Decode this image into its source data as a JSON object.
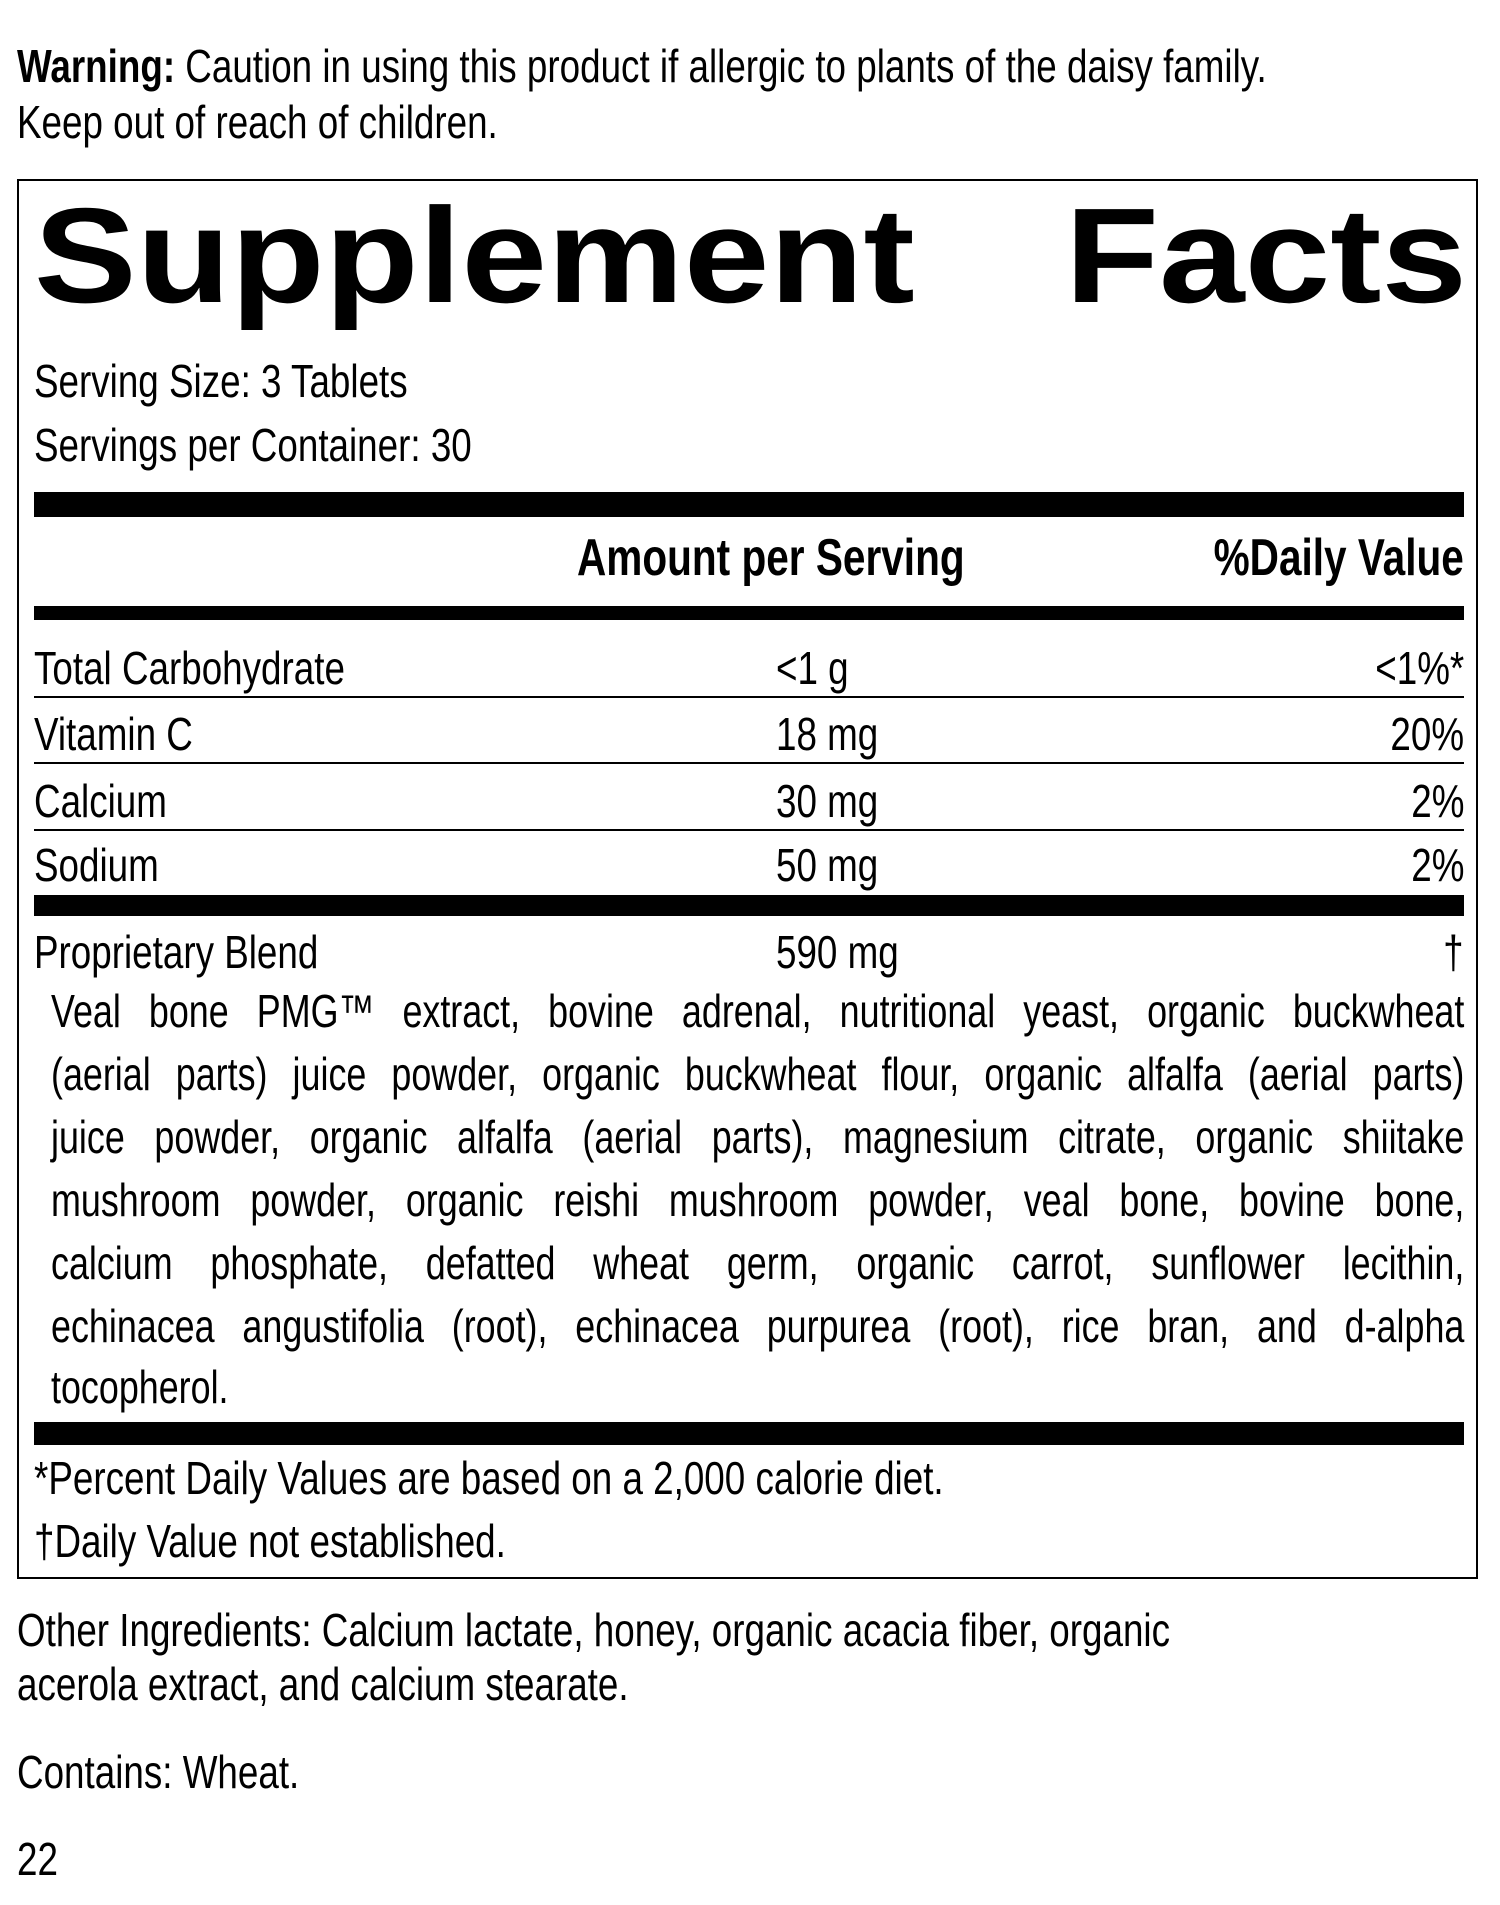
{
  "warning": {
    "label": "Warning:",
    "text": " Caution in using this product if allergic to plants of the daisy family.",
    "line2": "Keep out of reach of children."
  },
  "facts": {
    "title_word1": "Supplement",
    "title_word2": "Facts",
    "serving_size": "Serving Size: 3 Tablets",
    "servings_per_container": "Servings per Container: 30",
    "header_amount": "Amount per Serving",
    "header_dv": "%Daily Value",
    "rows": [
      {
        "name": "Total Carbohydrate",
        "amount": "<1 g",
        "dv": "<1%*"
      },
      {
        "name": "Vitamin C",
        "amount": "18 mg",
        "dv": "20%"
      },
      {
        "name": "Calcium",
        "amount": "30 mg",
        "dv": "2%"
      },
      {
        "name": "Sodium",
        "amount": "50 mg",
        "dv": "2%"
      }
    ],
    "blend": {
      "name": "Proprietary Blend",
      "amount": "590 mg",
      "dv": "†"
    },
    "blend_ingredients_lines": [
      "Veal bone PMG™ extract, bovine adrenal, nutritional yeast, organic buckwheat",
      "(aerial parts) juice powder, organic buckwheat flour, organic alfalfa (aerial parts)",
      "juice powder, organic alfalfa (aerial parts), magnesium citrate, organic shiitake",
      "mushroom powder, organic reishi mushroom powder, veal bone, bovine bone,",
      "calcium phosphate, defatted wheat germ, organic carrot, sunflower lecithin,",
      "echinacea angustifolia (root), echinacea purpurea (root), rice bran, and d-alpha",
      "tocopherol."
    ],
    "footnote1": "*Percent Daily Values are based on a 2,000 calorie diet.",
    "footnote2": "†Daily Value not established."
  },
  "other_ingredients": {
    "line1": "Other Ingredients: Calcium lactate, honey, organic acacia fiber, organic",
    "line2": "acerola extract, and calcium stearate."
  },
  "contains": "Contains: Wheat.",
  "page_number": "22"
}
